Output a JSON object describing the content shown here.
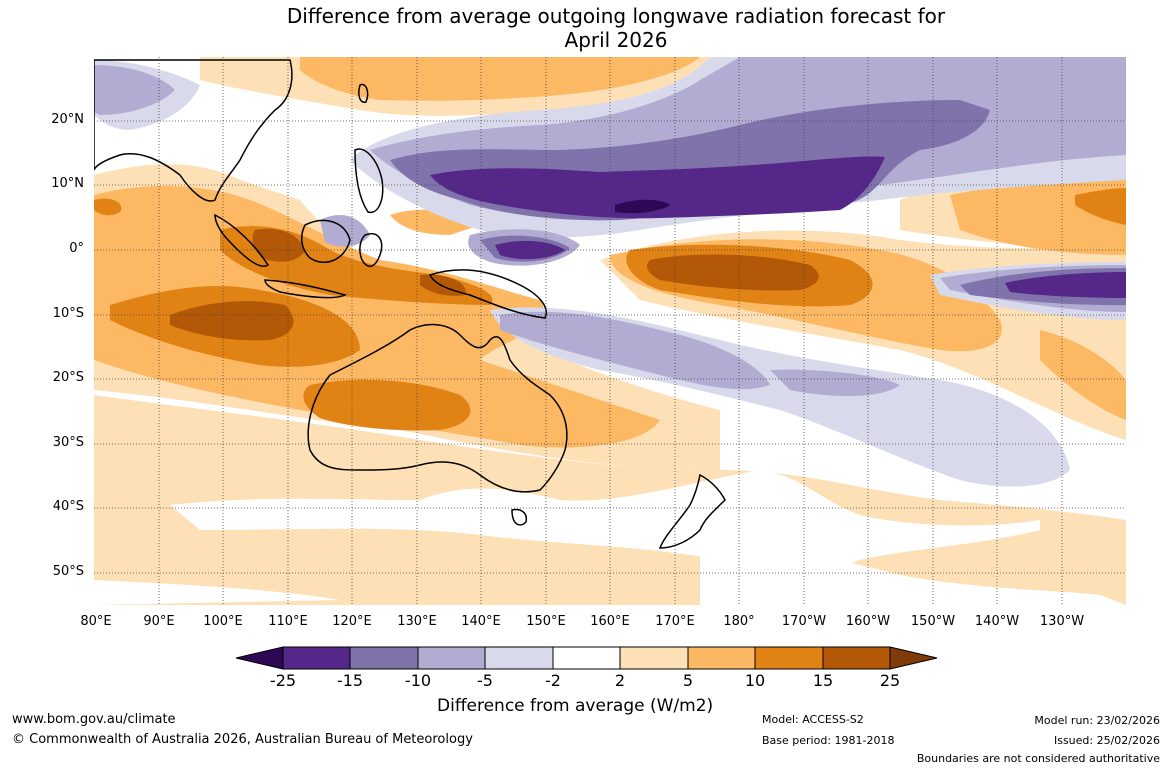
{
  "title": {
    "line1": "Difference from average outgoing longwave radiation forecast for",
    "line2": "April 2026"
  },
  "map": {
    "lat_labels": [
      "20°N",
      "10°N",
      "0°",
      "10°S",
      "20°S",
      "30°S",
      "40°S",
      "50°S"
    ],
    "lon_labels": [
      "80°E",
      "90°E",
      "100°E",
      "110°E",
      "120°E",
      "130°E",
      "140°E",
      "150°E",
      "160°E",
      "170°E",
      "180°",
      "170°W",
      "160°W",
      "150°W",
      "140°W",
      "130°W"
    ],
    "lat_range": [
      -55,
      30
    ],
    "lon_range": [
      80,
      240
    ]
  },
  "legend": {
    "title": "Difference from average (W/m2)",
    "ticks": [
      "-25",
      "-15",
      "-10",
      "-5",
      "-2",
      "2",
      "5",
      "10",
      "15",
      "25"
    ],
    "colors": {
      "lt_neg25": "#2e0854",
      "neg25_neg15": "#542788",
      "neg15_neg10": "#8073ac",
      "neg10_neg5": "#b2abd2",
      "neg5_neg2": "#d8daeb",
      "neg2_2": "#ffffff",
      "p2_5": "#fee0b6",
      "p5_10": "#fdb863",
      "p10_15": "#e08214",
      "p15_25": "#b35806",
      "gt_25": "#7f3b08"
    }
  },
  "footer": {
    "website": "www.bom.gov.au/climate",
    "copyright": "© Commonwealth of Australia 2026, Australian Bureau of Meteorology",
    "model": "Model: ACCESS-S2",
    "base_period": "Base period: 1981-2018",
    "model_run": "Model run: 23/02/2026",
    "issued": "Issued: 25/02/2026",
    "disclaimer": "Boundaries are not considered authoritative"
  }
}
